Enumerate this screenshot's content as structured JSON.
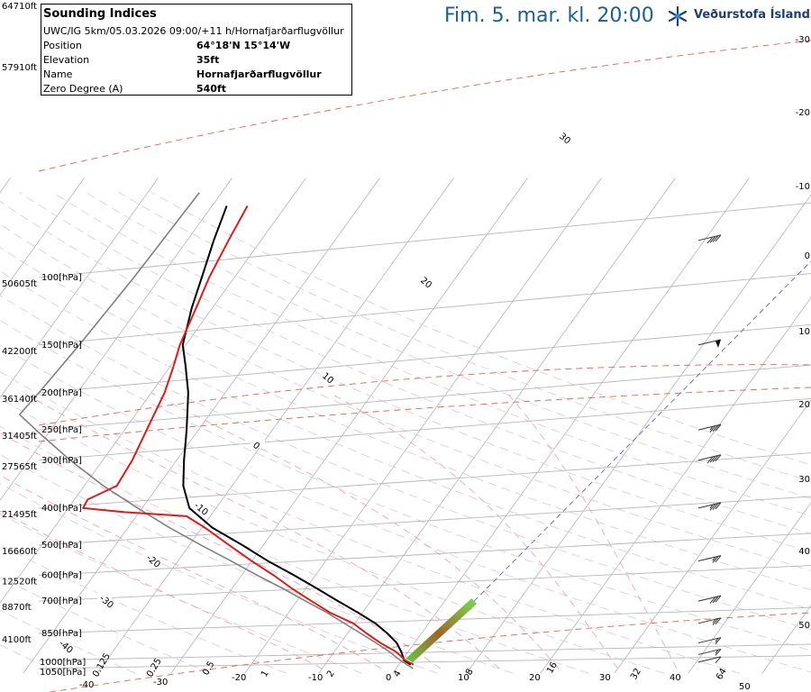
{
  "header": {
    "title": "Fim. 5. mar. kl. 20:00",
    "brand": "Veðurstofa Íslands"
  },
  "info_box": {
    "title": "Sounding Indices",
    "subtitle": "UWC/IG 5km/05.03.2026 09:00/+11 h/Hornafjarðarflugvöllur",
    "rows": [
      {
        "label": "Position",
        "value": "64°18'N 15°14'W"
      },
      {
        "label": "Elevation",
        "value": "35ft"
      },
      {
        "label": "Name",
        "value": "Hornafjarðarflugvöllur"
      },
      {
        "label": "Zero Degree (A)",
        "value": "540ft"
      }
    ]
  },
  "colors": {
    "temperature": "#d42020",
    "dewpoint": "#000000",
    "parcel": "#808080",
    "isobar": "#b8b8b8",
    "isotherm": "#b4b4b4",
    "dry_adiabat": "#dcc8d0",
    "moist_adiabat": "#e8a0a8",
    "mixing_ratio": "#e0a0a0",
    "title_blue": "#1f5f8b"
  },
  "chart_data": {
    "type": "line",
    "chart_kind": "skew-T log-p sounding",
    "pressure_levels": [
      {
        "p": 100,
        "label": "100[hPa]",
        "alt": "50605ft"
      },
      {
        "p": 150,
        "label": "150[hPa]",
        "alt": "42200ft"
      },
      {
        "p": 200,
        "label": "200[hPa]",
        "alt": "36140ft"
      },
      {
        "p": 250,
        "label": "250[hPa]",
        "alt": "31405ft"
      },
      {
        "p": 300,
        "label": "300[hPa]",
        "alt": "27565ft"
      },
      {
        "p": 400,
        "label": "400[hPa]",
        "alt": "21495ft"
      },
      {
        "p": 500,
        "label": "500[hPa]",
        "alt": "16660ft"
      },
      {
        "p": 600,
        "label": "600[hPa]",
        "alt": "12520ft"
      },
      {
        "p": 700,
        "label": "700[hPa]",
        "alt": "8870ft"
      },
      {
        "p": 850,
        "label": "850[hPa]",
        "alt": "4100ft"
      },
      {
        "p": 1000,
        "label": "1000[hPa]",
        "alt": ""
      },
      {
        "p": 1050,
        "label": "1050[hPa]",
        "alt": ""
      }
    ],
    "top_altitudes": [
      "64710ft",
      "57910ft"
    ],
    "isotherm_labels": [
      "-40",
      "-30",
      "-20",
      "-10",
      "0",
      "10",
      "20",
      "30",
      "40",
      "50"
    ],
    "right_axis_labels": [
      "-30",
      "-20",
      "-10",
      "0",
      "10",
      "20",
      "30",
      "40",
      "50"
    ],
    "mixing_ratio_labels": [
      "0.125",
      "0.25",
      "0.5",
      "1",
      "2",
      "4",
      "8",
      "16",
      "32",
      "64"
    ],
    "adiabat_labels": [
      "30",
      "20",
      "10",
      "0",
      "-10",
      "-20",
      "-30",
      "-40"
    ],
    "temperature_series": {
      "name": "",
      "points": [
        {
          "p": 1025,
          "t": 2.0
        },
        {
          "p": 1000,
          "t": 0.5
        },
        {
          "p": 950,
          "t": -1.6
        },
        {
          "p": 900,
          "t": -4.6
        },
        {
          "p": 850,
          "t": -7.4
        },
        {
          "p": 800,
          "t": -10.2
        },
        {
          "p": 750,
          "t": -14.4
        },
        {
          "p": 700,
          "t": -18.0
        },
        {
          "p": 650,
          "t": -21.8
        },
        {
          "p": 600,
          "t": -25.6
        },
        {
          "p": 550,
          "t": -30.0
        },
        {
          "p": 500,
          "t": -34.6
        },
        {
          "p": 450,
          "t": -39.6
        },
        {
          "p": 420,
          "t": -43.2
        },
        {
          "p": 410,
          "t": -52.0
        },
        {
          "p": 400,
          "t": -58.0
        },
        {
          "p": 380,
          "t": -58.2
        },
        {
          "p": 350,
          "t": -55.6
        },
        {
          "p": 300,
          "t": -56.0
        },
        {
          "p": 250,
          "t": -57.0
        },
        {
          "p": 200,
          "t": -58.2
        },
        {
          "p": 170,
          "t": -59.6
        },
        {
          "p": 150,
          "t": -60.8
        },
        {
          "p": 120,
          "t": -62.2
        },
        {
          "p": 100,
          "t": -63.4
        },
        {
          "p": 80,
          "t": -64.4
        },
        {
          "p": 65,
          "t": -65.2
        }
      ]
    },
    "dewpoint_series": {
      "name": "",
      "points": [
        {
          "p": 1025,
          "t": 1.6
        },
        {
          "p": 1000,
          "t": 0.3
        },
        {
          "p": 950,
          "t": -0.9
        },
        {
          "p": 900,
          "t": -2.4
        },
        {
          "p": 850,
          "t": -4.6
        },
        {
          "p": 800,
          "t": -7.2
        },
        {
          "p": 750,
          "t": -10.6
        },
        {
          "p": 700,
          "t": -14.4
        },
        {
          "p": 650,
          "t": -18.4
        },
        {
          "p": 600,
          "t": -22.8
        },
        {
          "p": 550,
          "t": -27.8
        },
        {
          "p": 500,
          "t": -32.8
        },
        {
          "p": 450,
          "t": -38.6
        },
        {
          "p": 400,
          "t": -43.6
        },
        {
          "p": 350,
          "t": -46.6
        },
        {
          "p": 300,
          "t": -49.0
        },
        {
          "p": 250,
          "t": -51.6
        },
        {
          "p": 200,
          "t": -55.0
        },
        {
          "p": 170,
          "t": -58.0
        },
        {
          "p": 150,
          "t": -60.4
        },
        {
          "p": 120,
          "t": -62.8
        },
        {
          "p": 100,
          "t": -64.4
        },
        {
          "p": 80,
          "t": -66.4
        },
        {
          "p": 65,
          "t": -68.0
        }
      ]
    },
    "parcel_series": {
      "name": "",
      "points": [
        {
          "p": 1050,
          "t": 2.3
        },
        {
          "p": 1000,
          "t": -0.2
        },
        {
          "p": 950,
          "t": -2.5
        },
        {
          "p": 900,
          "t": -5.2
        },
        {
          "p": 850,
          "t": -8.2
        },
        {
          "p": 800,
          "t": -11.4
        },
        {
          "p": 750,
          "t": -14.8
        },
        {
          "p": 700,
          "t": -18.8
        },
        {
          "p": 650,
          "t": -23.0
        },
        {
          "p": 600,
          "t": -27.8
        },
        {
          "p": 550,
          "t": -32.8
        },
        {
          "p": 500,
          "t": -38.4
        },
        {
          "p": 450,
          "t": -44.4
        },
        {
          "p": 400,
          "t": -50.6
        },
        {
          "p": 350,
          "t": -57.4
        },
        {
          "p": 300,
          "t": -64.4
        },
        {
          "p": 250,
          "t": -72.0
        },
        {
          "p": 228,
          "t": -75.7
        },
        {
          "p": 200,
          "t": -75.2
        },
        {
          "p": 150,
          "t": -74.4
        },
        {
          "p": 100,
          "t": -73.6
        },
        {
          "p": 60,
          "t": -73.0
        }
      ]
    },
    "parcel_shading": {
      "from_p": 1000,
      "to_p": 700
    },
    "wind_barbs": [
      {
        "p": 1010,
        "dir": 60,
        "kts": 10
      },
      {
        "p": 965,
        "dir": 60,
        "kts": 15
      },
      {
        "p": 900,
        "dir": 60,
        "kts": 15
      },
      {
        "p": 800,
        "dir": 60,
        "kts": 25
      },
      {
        "p": 700,
        "dir": 60,
        "kts": 30
      },
      {
        "p": 550,
        "dir": 60,
        "kts": 25
      },
      {
        "p": 400,
        "dir": 60,
        "kts": 35
      },
      {
        "p": 300,
        "dir": 60,
        "kts": 40
      },
      {
        "p": 250,
        "dir": 60,
        "kts": 35
      },
      {
        "p": 150,
        "dir": 60,
        "kts": 50
      },
      {
        "p": 80,
        "dir": 60,
        "kts": 40
      }
    ]
  }
}
